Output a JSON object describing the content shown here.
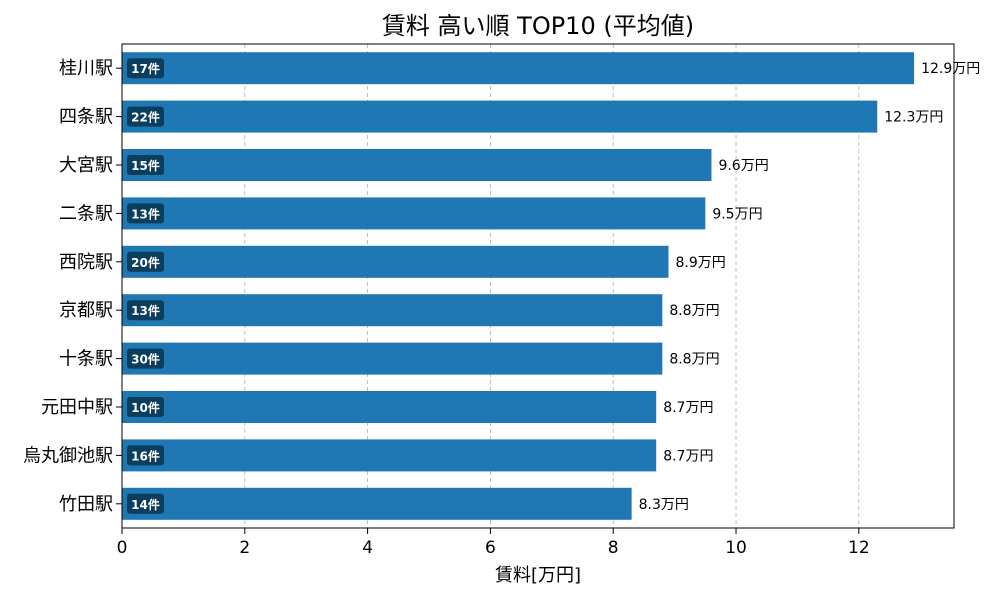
{
  "chart_data": {
    "type": "bar",
    "orientation": "horizontal",
    "title": "賃料 高い順 TOP10 (平均値)",
    "xlabel": "賃料[万円]",
    "ylabel": "",
    "xlim": [
      0,
      13.55
    ],
    "xticks": [
      "0",
      "2",
      "4",
      "6",
      "8",
      "10",
      "12"
    ],
    "grid": "vertical dashed",
    "colors": {
      "bar": "#1f77b4",
      "badge": "#0b3d5c"
    },
    "categories": [
      "桂川駅",
      "四条駅",
      "大宮駅",
      "二条駅",
      "西院駅",
      "京都駅",
      "十条駅",
      "元田中駅",
      "烏丸御池駅",
      "竹田駅"
    ],
    "values": [
      12.9,
      12.3,
      9.6,
      9.5,
      8.9,
      8.8,
      8.8,
      8.7,
      8.7,
      8.3
    ],
    "value_labels": [
      "12.9万円",
      "12.3万円",
      "9.6万円",
      "9.5万円",
      "8.9万円",
      "8.8万円",
      "8.8万円",
      "8.7万円",
      "8.7万円",
      "8.3万円"
    ],
    "counts": [
      "17件",
      "22件",
      "15件",
      "13件",
      "20件",
      "13件",
      "30件",
      "10件",
      "16件",
      "14件"
    ]
  }
}
